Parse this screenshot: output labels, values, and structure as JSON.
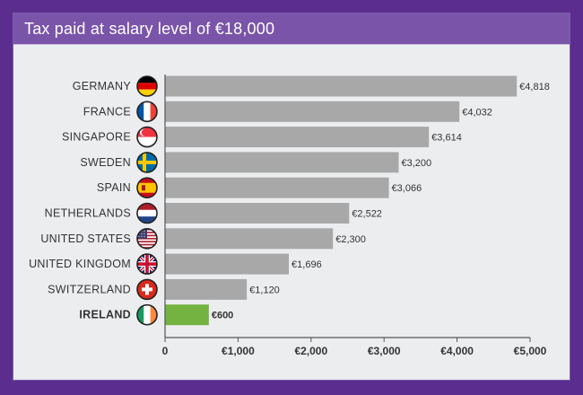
{
  "header": {
    "title": "Tax paid at salary level of €18,000"
  },
  "colors": {
    "bar": "#a8a8a8",
    "highlight": "#74b341",
    "axis": "#555555"
  },
  "chart_data": {
    "type": "bar",
    "orientation": "horizontal",
    "title": "Tax paid at salary level of €18,000",
    "categories": [
      "GERMANY",
      "FRANCE",
      "SINGAPORE",
      "SWEDEN",
      "SPAIN",
      "NETHERLANDS",
      "UNITED STATES",
      "UNITED KINGDOM",
      "SWITZERLAND",
      "IRELAND"
    ],
    "values": [
      4818,
      4032,
      3614,
      3200,
      3066,
      2522,
      2300,
      1696,
      1120,
      600
    ],
    "value_labels": [
      "€4,818",
      "€4,032",
      "€3,614",
      "€3,200",
      "€3,066",
      "€2,522",
      "€2,300",
      "€1,696",
      "€1,120",
      "€600"
    ],
    "highlight": "IRELAND",
    "flag_icons": [
      "germany-flag-icon",
      "france-flag-icon",
      "singapore-flag-icon",
      "sweden-flag-icon",
      "spain-flag-icon",
      "netherlands-flag-icon",
      "united-states-flag-icon",
      "united-kingdom-flag-icon",
      "switzerland-flag-icon",
      "ireland-flag-icon"
    ],
    "xlim": [
      0,
      5000
    ],
    "xticks": [
      0,
      1000,
      2000,
      3000,
      4000,
      5000
    ],
    "xtick_labels": [
      "0",
      "€1,000",
      "€2,000",
      "€3,000",
      "€4,000",
      "€5,000"
    ],
    "xlabel": "",
    "ylabel": "",
    "grid": false
  }
}
